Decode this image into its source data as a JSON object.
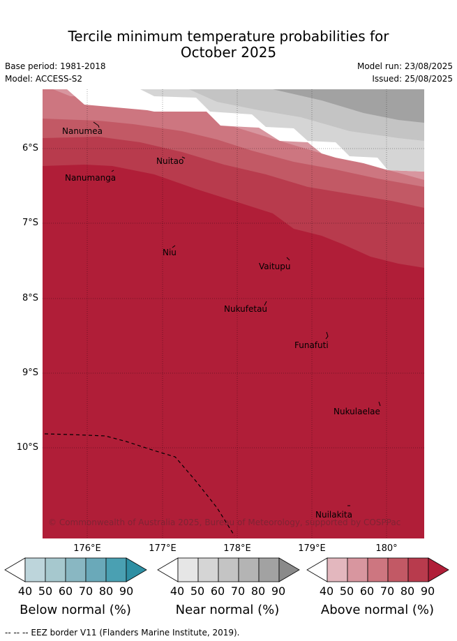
{
  "title_line1": "Tercile minimum temperature probabilities for",
  "title_line2": "October 2025",
  "base_period": "Base period: 1981-2018",
  "model": "Model: ACCESS-S2",
  "model_run": "Model run: 23/08/2025",
  "issued": "Issued: 25/08/2025",
  "lat_labels": [
    "6°S",
    "7°S",
    "8°S",
    "9°S",
    "10°S"
  ],
  "lon_labels": [
    "176°E",
    "177°E",
    "178°E",
    "179°E",
    "180°"
  ],
  "places": [
    "Nanumea",
    "Nanumanga",
    "Nuitao",
    "Niu",
    "Vaitupu",
    "Nukufetau",
    "Funafuti",
    "Nukulaelae",
    "Nuilakita"
  ],
  "copyright": "© Commonwealth of Australia 2025, Bureau of Meteorology, supported by COSPPac",
  "colorbars": [
    {
      "label": "Below normal (%)",
      "ticks": [
        "40",
        "50",
        "60",
        "70",
        "80",
        "90"
      ],
      "colors": [
        "#ffffff",
        "#bdd5db",
        "#a6c8ce",
        "#89b7c2",
        "#6aa9b9",
        "#4aa0b2",
        "#2e8fa3"
      ]
    },
    {
      "label": "Near normal (%)",
      "ticks": [
        "40",
        "50",
        "60",
        "70",
        "80",
        "90"
      ],
      "colors": [
        "#ffffff",
        "#e6e6e6",
        "#d5d5d5",
        "#c4c4c4",
        "#b4b4b4",
        "#a2a2a2",
        "#8a8a8a"
      ]
    },
    {
      "label": "Above normal (%)",
      "ticks": [
        "40",
        "50",
        "60",
        "70",
        "80",
        "90"
      ],
      "colors": [
        "#ffffff",
        "#e3b7be",
        "#d8969f",
        "#cd7680",
        "#c25965",
        "#b83b4d",
        "#b01e38"
      ]
    }
  ],
  "footnote": "--  --  -- EEZ border V11 (Flanders Marine Institute, 2019)."
}
